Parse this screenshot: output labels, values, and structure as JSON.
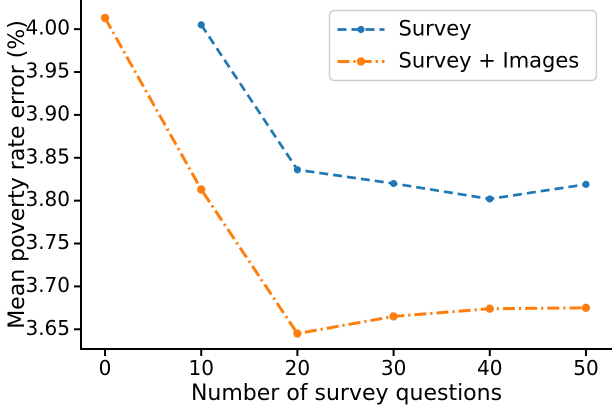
{
  "figure": {
    "background": "#ffffff",
    "text_color": "#000000",
    "spine_color": "#000000"
  },
  "chart_data": {
    "type": "line",
    "title": "",
    "xlabel": "Number of survey questions",
    "ylabel": "Mean poverty rate error (%)",
    "x_ticks": [
      0,
      10,
      20,
      30,
      40,
      50
    ],
    "x_tick_labels": [
      "0",
      "10",
      "20",
      "30",
      "40",
      "50"
    ],
    "y_ticks": [
      3.65,
      3.7,
      3.75,
      3.8,
      3.85,
      3.9,
      3.95,
      4.0
    ],
    "y_tick_labels": [
      "3.65",
      "3.70",
      "3.75",
      "3.80",
      "3.85",
      "3.90",
      "3.95",
      "4.00"
    ],
    "xlim": [
      -2.5,
      52.5
    ],
    "ylim": [
      3.627,
      4.034
    ],
    "grid": false,
    "legend": {
      "position": "upper right",
      "border_color": "#cccccc",
      "background": "#ffffff",
      "entries": [
        "Survey",
        "Survey + Images"
      ]
    },
    "series": [
      {
        "name": "Survey",
        "color": "#1f77b4",
        "linestyle": "dashed",
        "marker": "point",
        "x": [
          10,
          20,
          30,
          40,
          50
        ],
        "y": [
          4.005,
          3.836,
          3.82,
          3.802,
          3.819
        ]
      },
      {
        "name": "Survey + Images",
        "color": "#ff7f0e",
        "linestyle": "dashdot",
        "marker": "point",
        "x": [
          0,
          10,
          20,
          30,
          40,
          50
        ],
        "y": [
          4.013,
          3.813,
          3.645,
          3.665,
          3.674,
          3.675
        ]
      }
    ]
  }
}
